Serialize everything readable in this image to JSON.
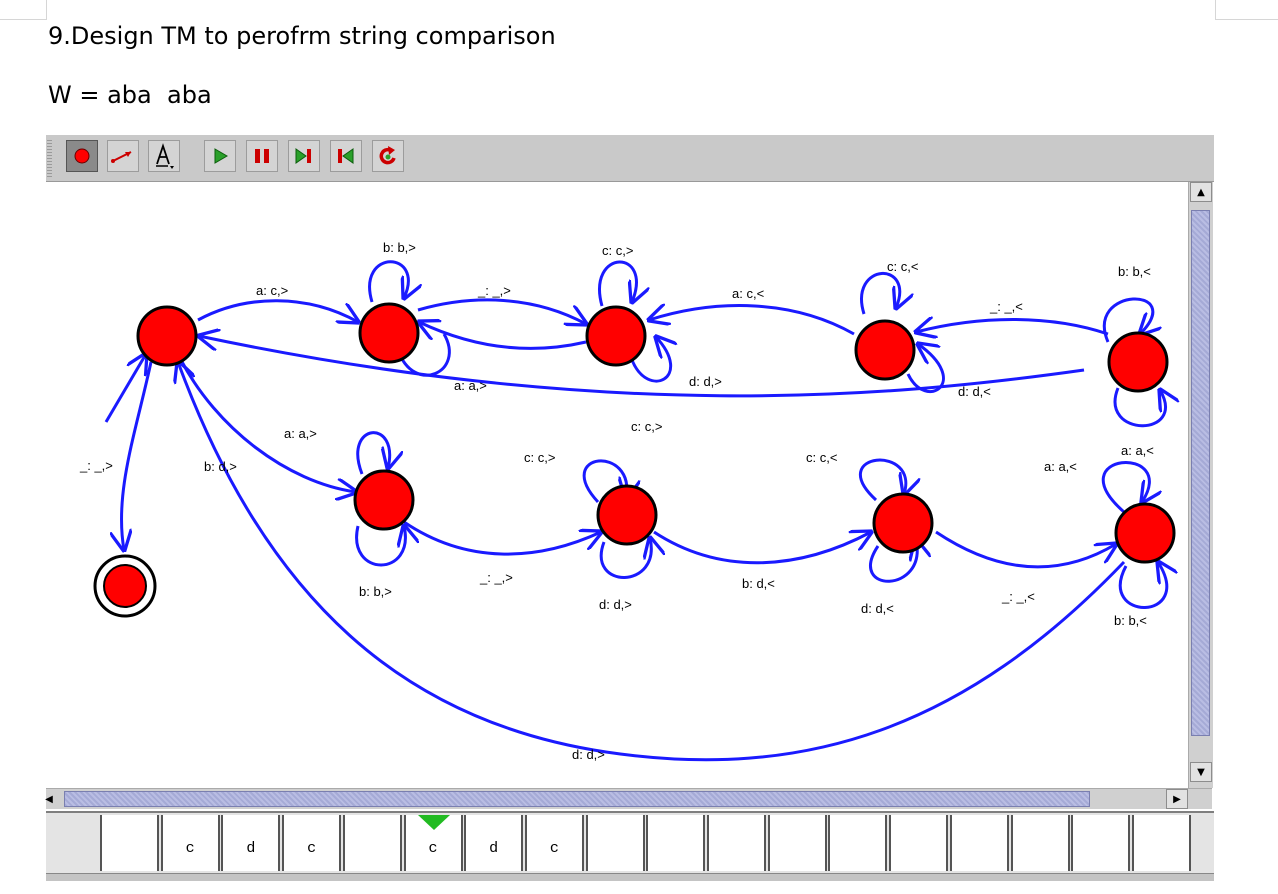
{
  "document": {
    "title": "9.Design TM to perofrm string comparison",
    "subtitle": "W = aba  aba"
  },
  "toolbar": {
    "tools": [
      {
        "name": "state-tool",
        "icon": "red-dot-icon",
        "selected": true
      },
      {
        "name": "transition-tool",
        "icon": "arrow-icon",
        "selected": false
      },
      {
        "name": "text-tool",
        "icon": "letter-a-icon",
        "selected": false
      }
    ],
    "controls": [
      {
        "name": "play-button",
        "icon": "play-icon"
      },
      {
        "name": "pause-button",
        "icon": "pause-icon"
      },
      {
        "name": "step-forward-button",
        "icon": "step-forward-icon"
      },
      {
        "name": "step-back-button",
        "icon": "step-back-icon"
      },
      {
        "name": "reset-button",
        "icon": "reset-icon"
      }
    ],
    "colors": {
      "state_fill": "#ff0000",
      "edge": "#1a1aff",
      "play": "#2aa02a",
      "pause": "#cc0000",
      "tape_head": "#22bb22"
    }
  },
  "diagram": {
    "transitions": {
      "t_q0_q1": "a: c,>",
      "t_q1_loop": "b: b,>",
      "t_q1_q2": "_: _,>",
      "t_q2_loop_top": "c: c,>",
      "t_q2_loop_bottom": "d: d,>",
      "t_q1_q0": "a: a,>",
      "t_q3_q2": "a: c,<",
      "t_q3_loop": "c: c,<",
      "t_q4_q3": "_: _,<",
      "t_q4_loop": "b: b,<",
      "t_q3_loop_bottom": "d: d,<",
      "t_q4_q0": "c: c,>",
      "t_q0_q5": "a: a,>",
      "t_q0_q9": "b: d,>",
      "t_q0_final": "_: _,>",
      "t_q5_loop_bottom": "b: b,>",
      "t_q5_q6": "_: _,>",
      "t_q6_loop_top": "c: c,>",
      "t_q6_loop_bottom": "d: d,>",
      "t_q6_q7": "b: d,<",
      "t_q7_loop_top": "c: c,<",
      "t_q7_loop_bottom": "d: d,<",
      "t_q7_q8": "_: _,<",
      "t_q8_loop_top": "a: a,<",
      "t_q8_loop_top2": "a: a,<",
      "t_q8_loop_bottom": "b: b,<",
      "t_q8_q0": "d: d,>"
    }
  },
  "tape": {
    "cells": [
      "",
      "c",
      "d",
      "c",
      "",
      "c",
      "d",
      "c",
      "",
      "",
      "",
      "",
      "",
      "",
      "",
      "",
      "",
      ""
    ],
    "head_index": 5
  }
}
